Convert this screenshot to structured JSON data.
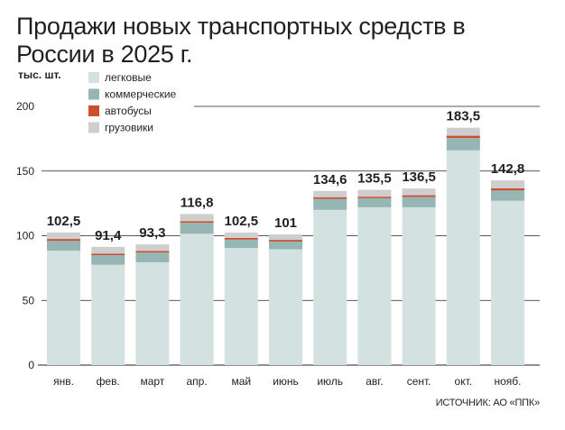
{
  "title": "Продажи новых транспортных средств в России в 2025 г.",
  "source": "ИСТОЧНИК: АО «ППК»",
  "chart_data": {
    "type": "bar",
    "stacked": true,
    "title": "Продажи новых транспортных средств в России в 2025 г.",
    "ylabel": "тыс. шт.",
    "xlabel": "",
    "ylim": [
      0,
      200
    ],
    "yticks": [
      0,
      50,
      100,
      150,
      200
    ],
    "grid": true,
    "legend_position": "top-left",
    "categories": [
      "янв.",
      "фев.",
      "март",
      "апр.",
      "май",
      "июнь",
      "июль",
      "авг.",
      "сент.",
      "окт.",
      "нояб."
    ],
    "totals": [
      102.5,
      91.4,
      93.3,
      116.8,
      102.5,
      101,
      134.6,
      135.5,
      136.5,
      183.5,
      142.8
    ],
    "total_labels": [
      "102,5",
      "91,4",
      "93,3",
      "116,8",
      "102,5",
      "101",
      "134,6",
      "135,5",
      "136,5",
      "183,5",
      "142,8"
    ],
    "series": [
      {
        "name": "легковые",
        "color": "#d3e2e1",
        "values": [
          88.5,
          77.5,
          79.5,
          101.5,
          90.5,
          89.5,
          120.0,
          122.0,
          122.0,
          166.0,
          127.0
        ]
      },
      {
        "name": "коммерческие",
        "color": "#96b6b4",
        "values": [
          7.5,
          7.5,
          7.5,
          8.5,
          6.5,
          6.0,
          8.5,
          7.0,
          8.0,
          9.5,
          8.0
        ]
      },
      {
        "name": "автобусы",
        "color": "#c8502e",
        "values": [
          1.5,
          1.2,
          1.2,
          1.3,
          1.3,
          1.3,
          1.3,
          1.2,
          1.3,
          1.8,
          1.6
        ]
      },
      {
        "name": "грузовики",
        "color": "#cfcece",
        "values": [
          5.0,
          5.2,
          5.1,
          5.5,
          4.2,
          4.2,
          4.8,
          5.3,
          5.2,
          6.2,
          6.2
        ]
      }
    ]
  }
}
